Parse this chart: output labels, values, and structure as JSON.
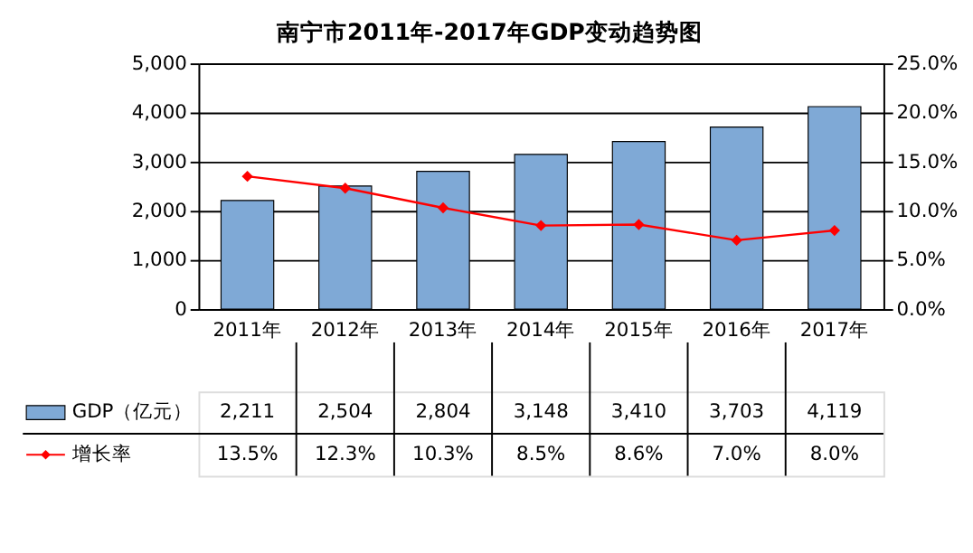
{
  "chart_data": {
    "type": "bar",
    "title": "南宁市2011年-2017年GDP变动趋势图",
    "categories": [
      "2011年",
      "2012年",
      "2013年",
      "2014年",
      "2015年",
      "2016年",
      "2017年"
    ],
    "series": [
      {
        "name": "GDP（亿元）",
        "color": "#7fa9d6",
        "values": [
          2211,
          2504,
          2804,
          3148,
          3410,
          3703,
          4119
        ],
        "value_labels": [
          "2,211",
          "2,504",
          "2,804",
          "3,148",
          "3,410",
          "3,703",
          "4,119"
        ]
      },
      {
        "name": "增长率",
        "type": "line",
        "axis": "y2",
        "color": "#ff0000",
        "marker": "diamond",
        "values": [
          13.5,
          12.3,
          10.3,
          8.5,
          8.6,
          7.0,
          8.0
        ],
        "value_labels": [
          "13.5%",
          "12.3%",
          "10.3%",
          "8.5%",
          "8.6%",
          "7.0%",
          "8.0%"
        ]
      }
    ],
    "ylim": [
      0,
      5000
    ],
    "yticks": [
      0,
      {
        "value": 1000,
        "label": "1,000"
      },
      {
        "value": 2000,
        "label": "2,000"
      },
      {
        "value": 3000,
        "label": "3,000"
      },
      {
        "value": 4000,
        "label": "4,000"
      },
      {
        "value": 5000,
        "label": "5,000"
      }
    ],
    "y2lim": [
      0,
      25
    ],
    "y2ticks": [
      {
        "value": 0,
        "label": "0.0%"
      },
      {
        "value": 5,
        "label": "5.0%"
      },
      {
        "value": 10,
        "label": "10.0%"
      },
      {
        "value": 15,
        "label": "15.0%"
      },
      {
        "value": 20,
        "label": "20.0%"
      },
      {
        "value": 25,
        "label": "25.0%"
      }
    ],
    "grid": "y",
    "legend": "bottom left",
    "data_labels": true
  }
}
